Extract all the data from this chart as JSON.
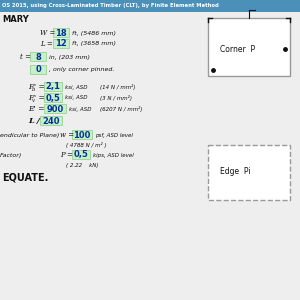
{
  "title": "OS 2015, using Cross-Laminated Timber (CLT), by Finite Element Method",
  "title_bg": "#4a90b8",
  "title_fg": "#ffffff",
  "section_label": "MARY",
  "W_val": "18",
  "W_unit": "ft, (5486 mm)",
  "L_val": "12",
  "L_unit": "ft, (3658 mm)",
  "t_val": "8",
  "t_unit": "in, (203 mm)",
  "pin_val": "0",
  "pin_note": ", only corner pinned.",
  "Fb_val": "2,1",
  "Fb_unit": "ksi, ASD",
  "Fb_si": "(14 N / mm²)",
  "Fv_val": "0,5",
  "Fv_unit": "ksi, ASD",
  "Fv_si": "(3 N / mm²)",
  "E_val": "900",
  "E_unit": "ksi, ASD",
  "E_si": "(6207 N / mm²)",
  "defl_label": "L /",
  "defl_val": "240",
  "load_label1": "endicular to Plane)",
  "w_val": "100",
  "w_unit": "psf, ASD level",
  "w_si": "( 4788 N / m² )",
  "load_label2": "Factor)",
  "P_val": "0,5",
  "P_unit": "kips, ASD level",
  "P_si": "( 2.22    kN)",
  "conclusion": "EQUATE.",
  "box_fill": "#c8f0c8",
  "box_edge": "#88cc88",
  "blue_text": "#003399",
  "corner_label": "Corner  P",
  "edge_label": "Edge  Pi",
  "bg_color": "#eeeeee",
  "black": "#111111"
}
